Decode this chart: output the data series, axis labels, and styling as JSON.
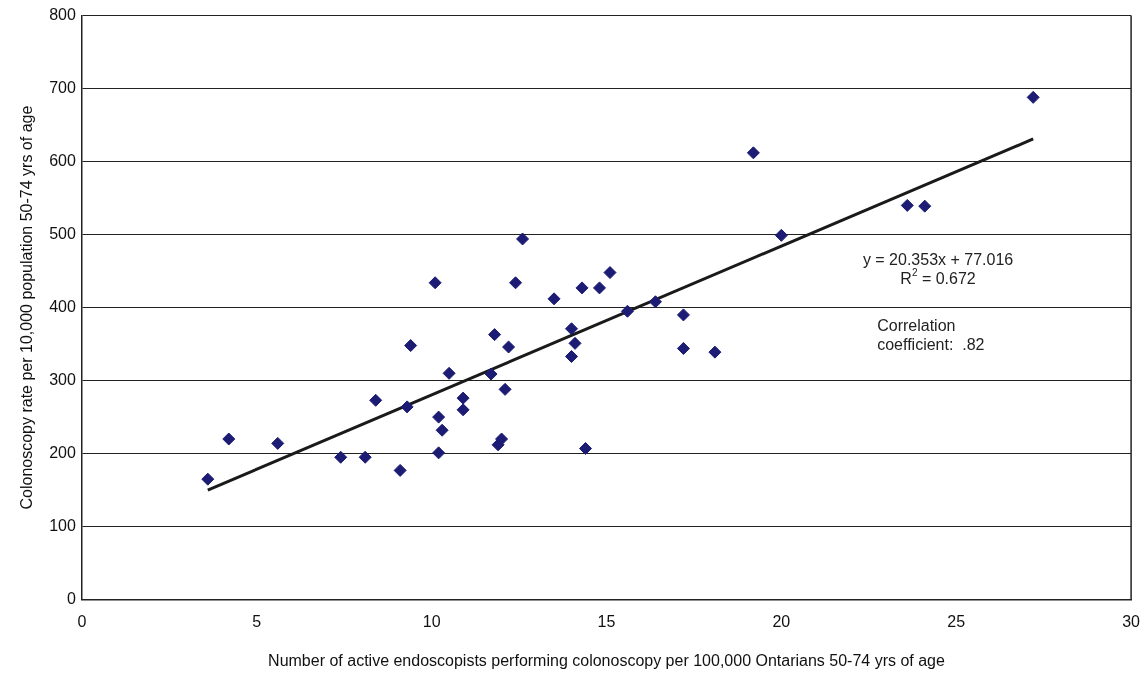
{
  "chart_data": {
    "type": "scatter",
    "xlabel": "Number of active endoscopists performing colonoscopy per 100,000 Ontarians 50-74 yrs of age",
    "ylabel": "Colonoscopy rate per 10,000 population 50-74 yrs of age",
    "xlim": [
      0,
      30
    ],
    "xticks": [
      0,
      5,
      10,
      15,
      20,
      25,
      30
    ],
    "ylim": [
      0,
      800
    ],
    "yticks": [
      0,
      100,
      200,
      300,
      400,
      500,
      600,
      700,
      800
    ],
    "grid": "y",
    "legend": false,
    "marker": "diamond",
    "series": [
      {
        "color": "#1c1c74",
        "x": [
          3.6,
          4.2,
          5.6,
          7.4,
          8.1,
          8.4,
          9.1,
          9.3,
          9.4,
          10.1,
          10.2,
          10.2,
          10.3,
          10.5,
          10.9,
          10.9,
          11.7,
          11.8,
          11.9,
          12.0,
          12.1,
          12.2,
          12.4,
          12.6,
          13.5,
          14.0,
          14.0,
          14.1,
          14.3,
          14.4,
          14.8,
          15.1,
          15.6,
          16.4,
          17.2,
          17.2,
          18.1,
          19.2,
          20.0,
          23.6,
          24.1,
          27.2
        ],
        "values": [
          165,
          220,
          214,
          195,
          195,
          273,
          177,
          264,
          348,
          434,
          250,
          201,
          232,
          310,
          276,
          260,
          309,
          363,
          212,
          220,
          288,
          346,
          434,
          494,
          412,
          333,
          371,
          351,
          427,
          207,
          427,
          448,
          395,
          408,
          344,
          390,
          339,
          612,
          499,
          540,
          539,
          688
        ]
      },
      {
        "type": "line",
        "color": "#1a1a1a",
        "x": [
          3.6,
          27.2
        ],
        "values": [
          150,
          631
        ],
        "marker": "none"
      }
    ],
    "annotations": [
      "y = 20.353x + 77.016",
      "R$^{2}$ = 0.672",
      "Correlation\ncoefficient:  .82"
    ]
  }
}
